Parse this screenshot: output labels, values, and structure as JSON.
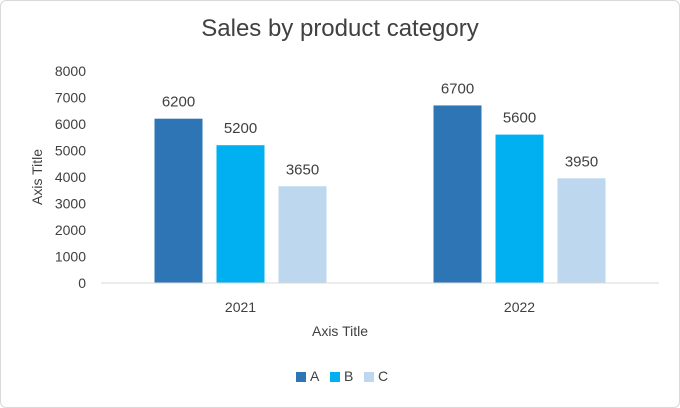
{
  "chart_data": {
    "type": "bar",
    "title": "Sales by product category",
    "xlabel": "Axis Title",
    "ylabel": "Axis Title",
    "categories": [
      "2021",
      "2022"
    ],
    "series": [
      {
        "name": "A",
        "values": [
          6200,
          6700
        ],
        "color": "#2e75b6"
      },
      {
        "name": "B",
        "values": [
          5200,
          5600
        ],
        "color": "#00b0f0"
      },
      {
        "name": "C",
        "values": [
          3650,
          3950
        ],
        "color": "#bdd7ee"
      }
    ],
    "ylim": [
      0,
      8000
    ],
    "yticks": [
      0,
      1000,
      2000,
      3000,
      4000,
      5000,
      6000,
      7000,
      8000
    ],
    "grid": false,
    "legend_position": "bottom",
    "data_labels": true
  }
}
